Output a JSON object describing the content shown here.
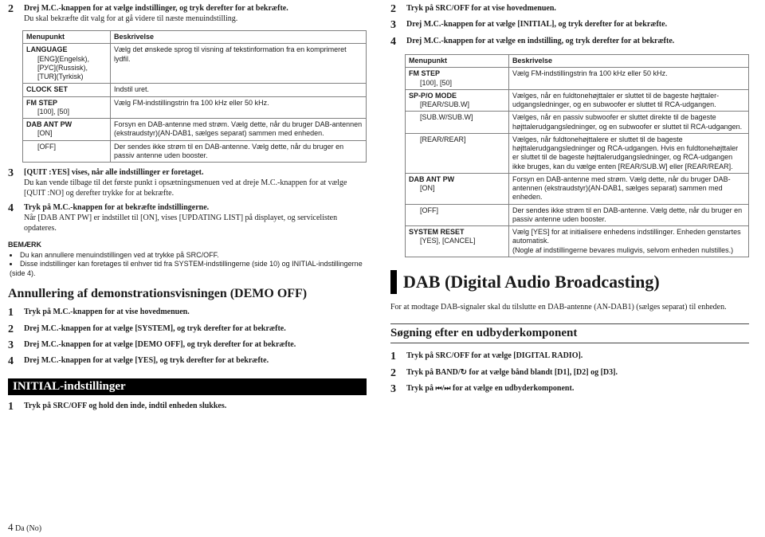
{
  "left": {
    "step2": {
      "title": "Drej M.C.-knappen for at vælge indstillinger, og tryk derefter for at bekræfte.",
      "sub": "Du skal bekræfte dit valg for at gå videre til næste menuindstilling."
    },
    "table1": {
      "head": {
        "c0": "Menupunkt",
        "c1": "Beskrivelse"
      },
      "rows": [
        {
          "c0": "LANGUAGE",
          "sub": "[ENG](Engelsk), [РУС](Russisk), [TUR](Tyrkisk)",
          "c1": "Vælg det ønskede sprog til visning af tekstinformation fra en komprimeret lydfil."
        },
        {
          "c0": "CLOCK SET",
          "c1": "Indstil uret."
        },
        {
          "c0": "FM STEP",
          "sub": "[100], [50]",
          "c1": "Vælg FM-indstillingstrin fra 100 kHz eller 50 kHz."
        },
        {
          "c0": "DAB ANT PW",
          "sub": "[ON]",
          "c1": "Forsyn en DAB-antenne med strøm. Vælg dette, når du bruger DAB-antennen (ekstraudstyr)(AN-DAB1, sælges separat) sammen med enheden."
        },
        {
          "c0sub": "[OFF]",
          "c1": "Der sendes ikke strøm til en DAB-antenne. Vælg dette, når du bruger en passiv antenne uden booster."
        }
      ]
    },
    "step3": {
      "title": "[QUIT :YES] vises, når alle indstillinger er foretaget.",
      "sub": "Du kan vende tilbage til det første punkt i opsætningsmenuen ved at dreje M.C.-knappen for at vælge [QUIT :NO] og derefter trykke for at bekræfte."
    },
    "step4": {
      "title": "Tryk på M.C.-knappen for at bekræfte indstillingerne.",
      "sub": "Når [DAB ANT PW] er indstillet til [ON], vises [UPDATING LIST] på displayet, og servicelisten opdateres."
    },
    "noteHead": "BEMÆRK",
    "notes": [
      "Du kan annullere menuindstillingen ved at trykke på SRC/OFF.",
      "Disse indstillinger kan foretages til enhver tid fra SYSTEM-indstillingerne (side 10) og INITIAL-indstillingerne (side 4)."
    ],
    "demoHead": "Annullering af demonstrationsvisningen (DEMO OFF)",
    "demoSteps": [
      "Tryk på M.C.-knappen for at vise hovedmenuen.",
      "Drej M.C.-knappen for at vælge [SYSTEM], og tryk derefter for at bekræfte.",
      "Drej M.C.-knappen for at vælge [DEMO OFF], og tryk derefter for at bekræfte.",
      "Drej M.C.-knappen for at vælge [YES], og tryk derefter for at bekræfte."
    ],
    "initialHead": "INITIAL-indstillinger",
    "initStep1": "Tryk på SRC/OFF og hold den inde, indtil enheden slukkes.",
    "footerA": "4",
    "footerB": "Da (No)"
  },
  "right": {
    "steps": [
      "Tryk på SRC/OFF for at vise hovedmenuen.",
      "Drej M.C.-knappen for at vælge [INITIAL], og tryk derefter for at bekræfte.",
      "Drej M.C.-knappen for at vælge en indstilling, og tryk derefter for at bekræfte."
    ],
    "table": {
      "head": {
        "c0": "Menupunkt",
        "c1": "Beskrivelse"
      },
      "rows": [
        {
          "c0": "FM STEP",
          "sub": "[100], [50]",
          "c1": "Vælg FM-indstillingstrin fra 100 kHz eller 50 kHz."
        },
        {
          "c0": "SP-P/O MODE",
          "sub": "[REAR/SUB.W]",
          "c1": "Vælges, når en fuldtonehøjttaler er sluttet til de bageste højttaler-udgangsledninger, og en subwoofer er sluttet til RCA-udgangen."
        },
        {
          "c0sub": "[SUB.W/SUB.W]",
          "c1": "Vælges, når en passiv subwoofer er sluttet direkte til de bageste højttalerudgangsledninger, og en subwoofer er sluttet til RCA-udgangen."
        },
        {
          "c0sub": "[REAR/REAR]",
          "c1": "Vælges, når fuldtonehøjttalere er sluttet til de bageste højttalerudgangsledninger og RCA-udgangen. Hvis en fuldtonehøjttaler er sluttet til de bageste højttalerudgangsledninger, og RCA-udgangen ikke bruges, kan du vælge enten [REAR/SUB.W] eller [REAR/REAR]."
        },
        {
          "c0": "DAB ANT PW",
          "sub": "[ON]",
          "c1": "Forsyn en DAB-antenne med strøm. Vælg dette, når du bruger DAB-antennen (ekstraudstyr)(AN-DAB1, sælges separat) sammen med enheden."
        },
        {
          "c0sub": "[OFF]",
          "c1": "Der sendes ikke strøm til en DAB-antenne. Vælg dette, når du bruger en passiv antenne uden booster."
        },
        {
          "c0": "SYSTEM RESET",
          "sub": "[YES], [CANCEL]",
          "c1": "Vælg [YES] for at initialisere enhedens indstillinger. Enheden genstartes automatisk.\n(Nogle af indstillingerne bevares muligvis, selvom enheden nulstilles.)"
        }
      ]
    },
    "dabHead": "DAB (Digital Audio Broadcasting)",
    "dabIntro": "For at modtage DAB-signaler skal du tilslutte en DAB-antenne (AN-DAB1) (sælges separat) til enheden.",
    "subHead": "Søgning efter en udbyderkomponent",
    "subSteps": {
      "s1a": "Tryk på SRC/OFF for at vælge [DIGITAL RADIO].",
      "s2a": "Tryk på BAND/",
      "s2b": " for at vælge bånd blandt [D1], [D2] og [D3].",
      "s3a": "Tryk på ",
      "s3b": "/",
      "s3c": " for at vælge en udbyderkomponent."
    }
  }
}
